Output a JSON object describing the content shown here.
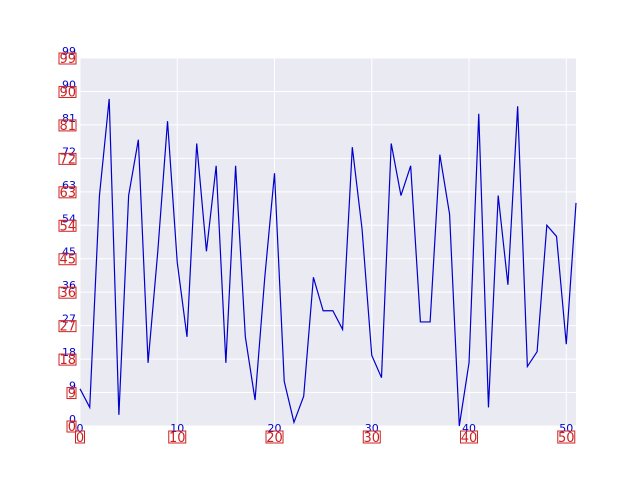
{
  "chart_data": {
    "type": "line",
    "title": "",
    "xlabel": "",
    "ylabel": "",
    "xlim": [
      0,
      51
    ],
    "ylim": [
      0,
      99
    ],
    "grid": true,
    "x_ticks": [
      "0",
      "10",
      "20",
      "30",
      "40",
      "50"
    ],
    "y_ticks": [
      "0",
      "9",
      "18",
      "27",
      "36",
      "45",
      "54",
      "63",
      "72",
      "81",
      "90",
      "99"
    ],
    "x_tick_values": [
      0,
      10,
      20,
      30,
      40,
      50
    ],
    "y_tick_values": [
      0,
      9,
      18,
      27,
      36,
      45,
      54,
      63,
      72,
      81,
      90,
      99
    ],
    "colors": {
      "line": "#0000cc",
      "plot_background": "#eaeaf2",
      "grid": "#ffffff",
      "tick_blue": "#0000cc",
      "tick_red": "#cc2222"
    },
    "series": [
      {
        "values": [
          10,
          5,
          62,
          88,
          3,
          62,
          77,
          17,
          47,
          82,
          44,
          24,
          76,
          47,
          70,
          17,
          70,
          24,
          7,
          40,
          68,
          12,
          1,
          8,
          40,
          31,
          31,
          26,
          75,
          53,
          19,
          13,
          76,
          62,
          70,
          28,
          28,
          73,
          57,
          0,
          17,
          84,
          5,
          62,
          38,
          86,
          16,
          20,
          54,
          51,
          22,
          60
        ]
      }
    ]
  }
}
